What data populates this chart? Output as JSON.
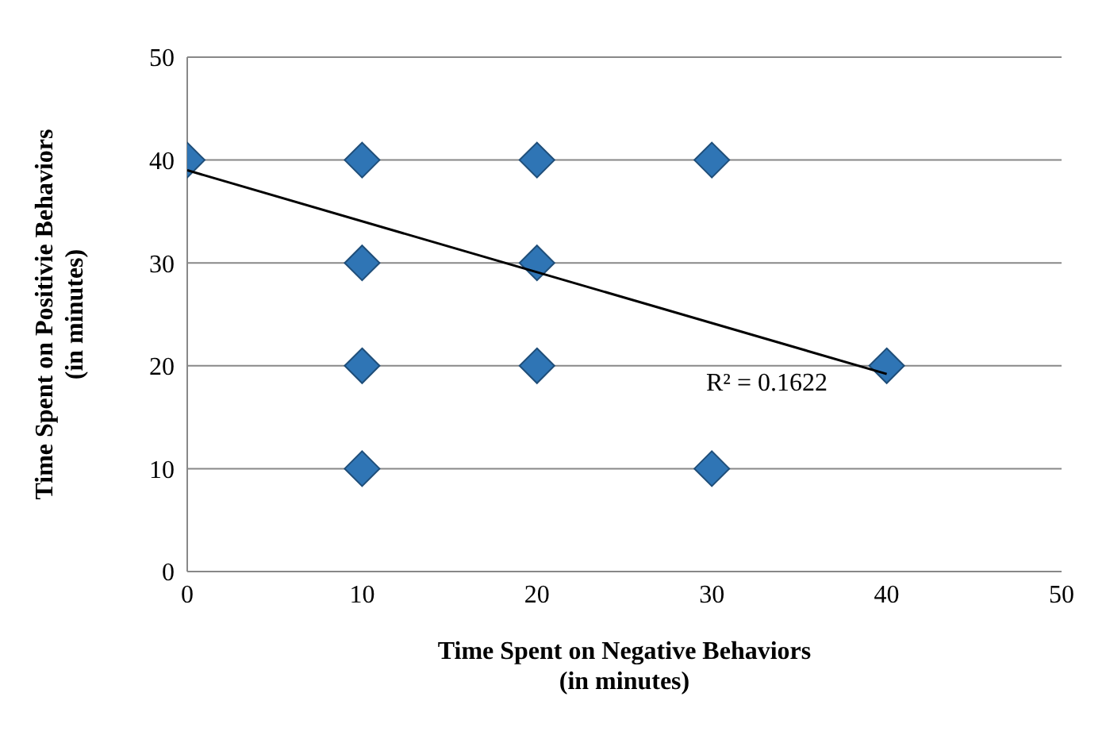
{
  "chart_data": {
    "type": "scatter",
    "xlabel": "Time Spent on Negative Behaviors\n(in minutes)",
    "ylabel": "Time Spent on Positivie Behaviors\n(in minutes)",
    "xlim": [
      0,
      50
    ],
    "xticks": [
      0,
      10,
      20,
      30,
      40,
      50
    ],
    "ylim": [
      0,
      50
    ],
    "yticks": [
      0,
      10,
      20,
      30,
      40,
      50
    ],
    "grid": "y",
    "marker": "diamond",
    "series": [
      {
        "color": "#2f75b5",
        "x": [
          0,
          10,
          10,
          10,
          10,
          20,
          20,
          20,
          30,
          30,
          40
        ],
        "values": [
          40,
          40,
          30,
          20,
          10,
          40,
          30,
          20,
          40,
          10,
          20
        ]
      },
      {
        "type": "line",
        "marker": "none",
        "color": "#000000",
        "x": [
          0,
          40
        ],
        "values": [
          39,
          19.2
        ]
      }
    ],
    "annotations": [
      "R² = 0.1622"
    ]
  }
}
